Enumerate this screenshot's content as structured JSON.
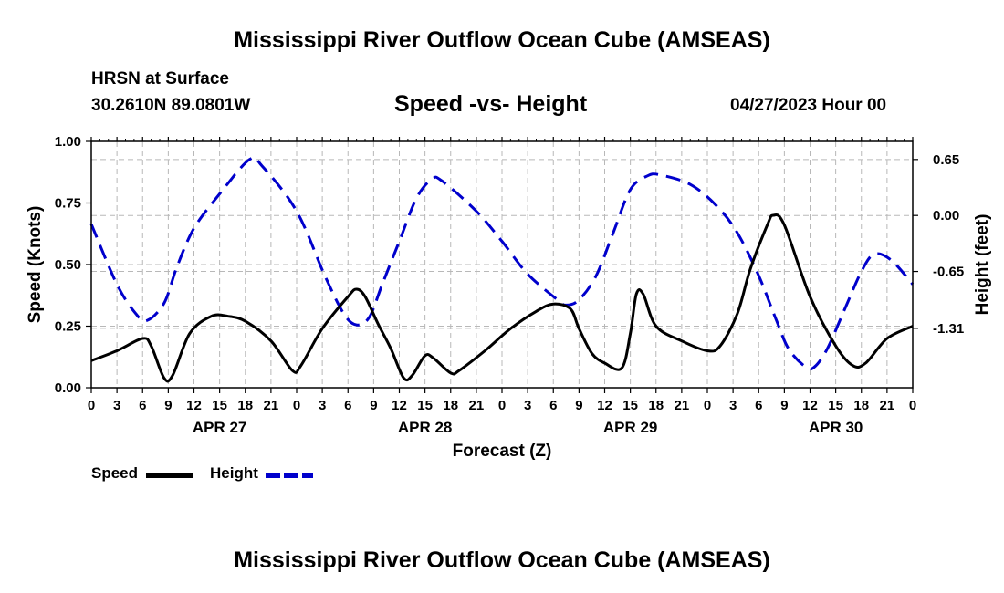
{
  "page": {
    "title": "Mississippi River Outflow Ocean Cube (AMSEAS)",
    "title_repeat": "Mississippi River Outflow Ocean Cube (AMSEAS)",
    "station_line": "HRSN at Surface",
    "coords_line": "30.2610N  89.0801W",
    "subtitle": "Speed -vs- Height",
    "datetime": "04/27/2023 Hour 00"
  },
  "chart_data": {
    "type": "line",
    "xlabel": "Forecast (Z)",
    "ylabel_left": "Speed (Knots)",
    "ylabel_right": "Height (feet)",
    "x_ticks": [
      "0",
      "3",
      "6",
      "9",
      "12",
      "15",
      "18",
      "21",
      "0",
      "3",
      "6",
      "9",
      "12",
      "15",
      "18",
      "21",
      "0",
      "3",
      "6",
      "9",
      "12",
      "15",
      "18",
      "21",
      "0",
      "3",
      "6",
      "9",
      "12",
      "15",
      "18",
      "21",
      "0"
    ],
    "day_labels": [
      {
        "label": "APR 27",
        "hour": 15
      },
      {
        "label": "APR 28",
        "hour": 39
      },
      {
        "label": "APR 29",
        "hour": 63
      },
      {
        "label": "APR 30",
        "hour": 87
      }
    ],
    "xlim": [
      0,
      96
    ],
    "ylim_left": [
      0,
      1.0
    ],
    "left_ticks": [
      "1.00",
      "0.75",
      "0.50",
      "0.25",
      "0.00"
    ],
    "ylim_right": [
      -2.0,
      0.86
    ],
    "right_ticks": [
      {
        "value": 0.65,
        "label": "0.65"
      },
      {
        "value": 0.0,
        "label": "0.00"
      },
      {
        "value": -0.65,
        "label": "-0.65"
      },
      {
        "value": -1.31,
        "label": "-1.31"
      }
    ],
    "series": [
      {
        "name": "Speed",
        "axis": "left",
        "color": "#000000",
        "style": "solid",
        "points": [
          [
            0,
            0.11
          ],
          [
            3,
            0.15
          ],
          [
            6,
            0.2
          ],
          [
            7,
            0.17
          ],
          [
            8.5,
            0.04
          ],
          [
            9.5,
            0.05
          ],
          [
            11.5,
            0.22
          ],
          [
            14,
            0.29
          ],
          [
            16,
            0.29
          ],
          [
            18,
            0.27
          ],
          [
            21,
            0.19
          ],
          [
            23.5,
            0.07
          ],
          [
            24.5,
            0.09
          ],
          [
            27,
            0.24
          ],
          [
            30,
            0.37
          ],
          [
            31,
            0.4
          ],
          [
            32,
            0.37
          ],
          [
            33.5,
            0.26
          ],
          [
            35,
            0.16
          ],
          [
            36.5,
            0.04
          ],
          [
            37.5,
            0.05
          ],
          [
            39,
            0.13
          ],
          [
            40,
            0.12
          ],
          [
            42,
            0.06
          ],
          [
            43,
            0.07
          ],
          [
            46,
            0.15
          ],
          [
            49,
            0.24
          ],
          [
            52,
            0.31
          ],
          [
            54,
            0.34
          ],
          [
            56,
            0.32
          ],
          [
            57,
            0.24
          ],
          [
            58.5,
            0.14
          ],
          [
            60,
            0.1
          ],
          [
            62,
            0.08
          ],
          [
            63,
            0.22
          ],
          [
            63.7,
            0.38
          ],
          [
            64.5,
            0.38
          ],
          [
            66,
            0.25
          ],
          [
            69,
            0.19
          ],
          [
            72,
            0.15
          ],
          [
            73.5,
            0.17
          ],
          [
            75.5,
            0.3
          ],
          [
            77,
            0.48
          ],
          [
            79,
            0.66
          ],
          [
            79.7,
            0.7
          ],
          [
            81,
            0.66
          ],
          [
            84,
            0.37
          ],
          [
            87,
            0.17
          ],
          [
            89,
            0.09
          ],
          [
            90.5,
            0.1
          ],
          [
            93,
            0.2
          ],
          [
            96,
            0.25
          ]
        ]
      },
      {
        "name": "Height",
        "axis": "right",
        "color": "#0000cc",
        "style": "dashed",
        "points": [
          [
            0,
            -0.1
          ],
          [
            3,
            -0.8
          ],
          [
            5.2,
            -1.14
          ],
          [
            6.5,
            -1.22
          ],
          [
            8.5,
            -1.02
          ],
          [
            10,
            -0.6
          ],
          [
            12,
            -0.15
          ],
          [
            15,
            0.25
          ],
          [
            18.5,
            0.65
          ],
          [
            20,
            0.57
          ],
          [
            24,
            0.05
          ],
          [
            27.3,
            -0.7
          ],
          [
            29.5,
            -1.14
          ],
          [
            31,
            -1.27
          ],
          [
            32.5,
            -1.18
          ],
          [
            34,
            -0.8
          ],
          [
            36,
            -0.3
          ],
          [
            38,
            0.2
          ],
          [
            39.8,
            0.42
          ],
          [
            41,
            0.4
          ],
          [
            45,
            0.05
          ],
          [
            48,
            -0.3
          ],
          [
            51,
            -0.68
          ],
          [
            54.5,
            -0.98
          ],
          [
            55.5,
            -1.04
          ],
          [
            57,
            -0.98
          ],
          [
            59,
            -0.7
          ],
          [
            61,
            -0.2
          ],
          [
            63,
            0.3
          ],
          [
            65,
            0.46
          ],
          [
            66.5,
            0.47
          ],
          [
            70,
            0.36
          ],
          [
            73,
            0.12
          ],
          [
            75.5,
            -0.2
          ],
          [
            78,
            -0.7
          ],
          [
            80,
            -1.2
          ],
          [
            81.5,
            -1.55
          ],
          [
            83.5,
            -1.76
          ],
          [
            84.5,
            -1.76
          ],
          [
            86,
            -1.55
          ],
          [
            88,
            -1.1
          ],
          [
            90,
            -0.65
          ],
          [
            91.5,
            -0.45
          ],
          [
            93.5,
            -0.52
          ],
          [
            96,
            -0.8
          ]
        ]
      }
    ]
  },
  "legend": {
    "speed_label": "Speed",
    "height_label": "Height"
  }
}
